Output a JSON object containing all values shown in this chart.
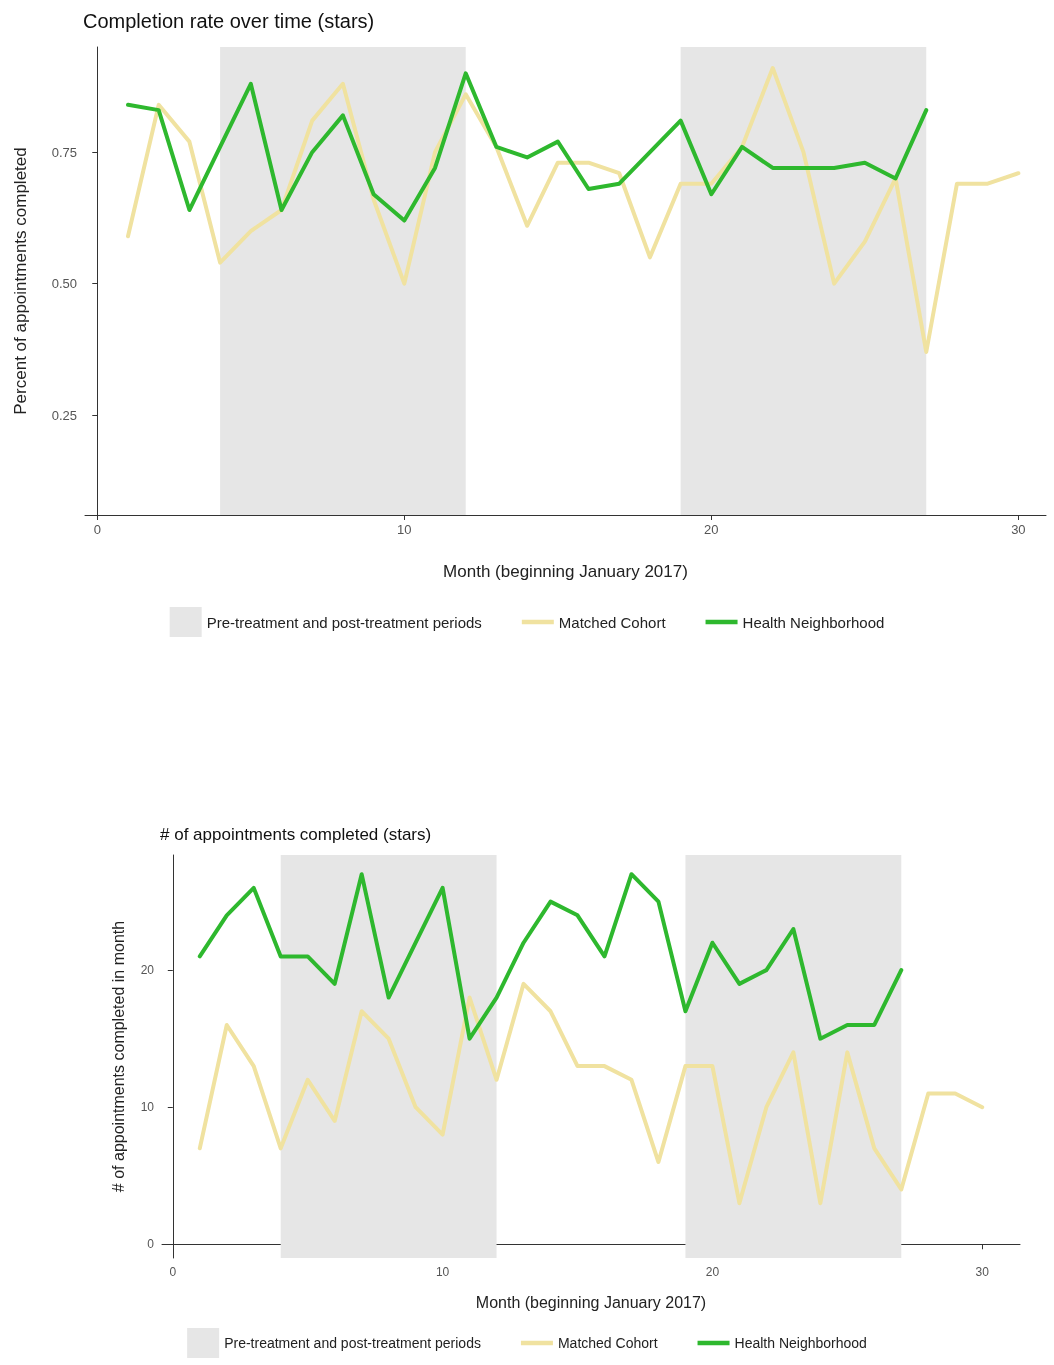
{
  "chart_data": [
    {
      "type": "line",
      "title": "Completion rate over time (stars)",
      "xlabel": "Month (beginning January 2017)",
      "ylabel": "Percent of appointments completed",
      "xlim": [
        -0.4,
        30.9
      ],
      "xticks": [
        0,
        10,
        20,
        30
      ],
      "ylim": [
        0.06,
        0.95
      ],
      "yticks": [
        {
          "value": 0.25,
          "label": "0.25"
        },
        {
          "value": 0.5,
          "label": "0.50"
        },
        {
          "value": 0.75,
          "label": "0.75"
        }
      ],
      "grid": false,
      "legend": "bottom",
      "bands": [
        {
          "axis": "x",
          "from": 4,
          "to": 12,
          "label": "Pre-treatment and post-treatment periods",
          "color": "#e6e6e6"
        },
        {
          "axis": "x",
          "from": 19,
          "to": 27,
          "color": "#e6e6e6"
        }
      ],
      "series": [
        {
          "name": "Matched Cohort",
          "color": "#f0e2a0",
          "x": [
            1,
            2,
            3,
            4,
            5,
            6,
            7,
            8,
            9,
            10,
            11,
            12,
            13,
            14,
            15,
            16,
            17,
            18,
            19,
            20,
            21,
            22,
            23,
            24,
            25,
            26,
            27,
            28,
            29,
            30
          ],
          "values": [
            0.59,
            0.84,
            0.77,
            0.54,
            0.6,
            0.64,
            0.81,
            0.88,
            0.66,
            0.5,
            0.75,
            0.86,
            0.76,
            0.61,
            0.73,
            0.73,
            0.71,
            0.55,
            0.69,
            0.69,
            0.76,
            0.91,
            0.75,
            0.5,
            0.58,
            0.7,
            0.37,
            0.69,
            0.69,
            0.71
          ]
        },
        {
          "name": "Health Neighborhood",
          "color": "#2eb82e",
          "x": [
            1,
            2,
            3,
            4,
            5,
            6,
            7,
            8,
            9,
            10,
            11,
            12,
            13,
            14,
            15,
            16,
            17,
            18,
            19,
            20,
            21,
            22,
            23,
            24,
            25,
            26,
            27
          ],
          "values": [
            0.84,
            0.83,
            0.64,
            0.76,
            0.88,
            0.64,
            0.75,
            0.82,
            0.67,
            0.62,
            0.72,
            0.9,
            0.76,
            0.74,
            0.77,
            0.68,
            0.69,
            0.75,
            0.81,
            0.67,
            0.76,
            0.72,
            0.72,
            0.72,
            0.73,
            0.7,
            0.83
          ]
        }
      ]
    },
    {
      "type": "line",
      "title": "# of appointments completed (stars)",
      "xlabel": "Month (beginning January 2017)",
      "ylabel": "# of appointments completed in month",
      "xlim": [
        -0.4,
        31.4
      ],
      "xticks": [
        0,
        10,
        20,
        30
      ],
      "ylim": [
        -1,
        28.4
      ],
      "yticks": [
        0,
        10,
        20
      ],
      "grid": false,
      "legend": "bottom",
      "bands": [
        {
          "axis": "x",
          "from": 4,
          "to": 12,
          "label": "Pre-treatment and post-treatment periods",
          "color": "#e6e6e6"
        },
        {
          "axis": "x",
          "from": 19,
          "to": 27,
          "color": "#e6e6e6"
        }
      ],
      "series": [
        {
          "name": "Matched Cohort",
          "color": "#f0e2a0",
          "x": [
            1,
            2,
            3,
            4,
            5,
            6,
            7,
            8,
            9,
            10,
            11,
            12,
            13,
            14,
            15,
            16,
            17,
            18,
            19,
            20,
            21,
            22,
            23,
            24,
            25,
            26,
            27,
            28,
            29,
            30
          ],
          "values": [
            7,
            16,
            13,
            7,
            12,
            9,
            17,
            15,
            10,
            8,
            18,
            12,
            19,
            17,
            13,
            13,
            12,
            6,
            13,
            13,
            3,
            10,
            14,
            3,
            14,
            7,
            4,
            11,
            11,
            10
          ]
        },
        {
          "name": "Health Neighborhood",
          "color": "#2eb82e",
          "x": [
            1,
            2,
            3,
            4,
            5,
            6,
            7,
            8,
            9,
            10,
            11,
            12,
            13,
            14,
            15,
            16,
            17,
            18,
            19,
            20,
            21,
            22,
            23,
            24,
            25,
            26,
            27
          ],
          "values": [
            21,
            24,
            26,
            21,
            21,
            19,
            27,
            18,
            22,
            26,
            15,
            18,
            22,
            25,
            24,
            21,
            27,
            25,
            17,
            22,
            19,
            20,
            23,
            15,
            16,
            16,
            20
          ]
        }
      ]
    }
  ]
}
